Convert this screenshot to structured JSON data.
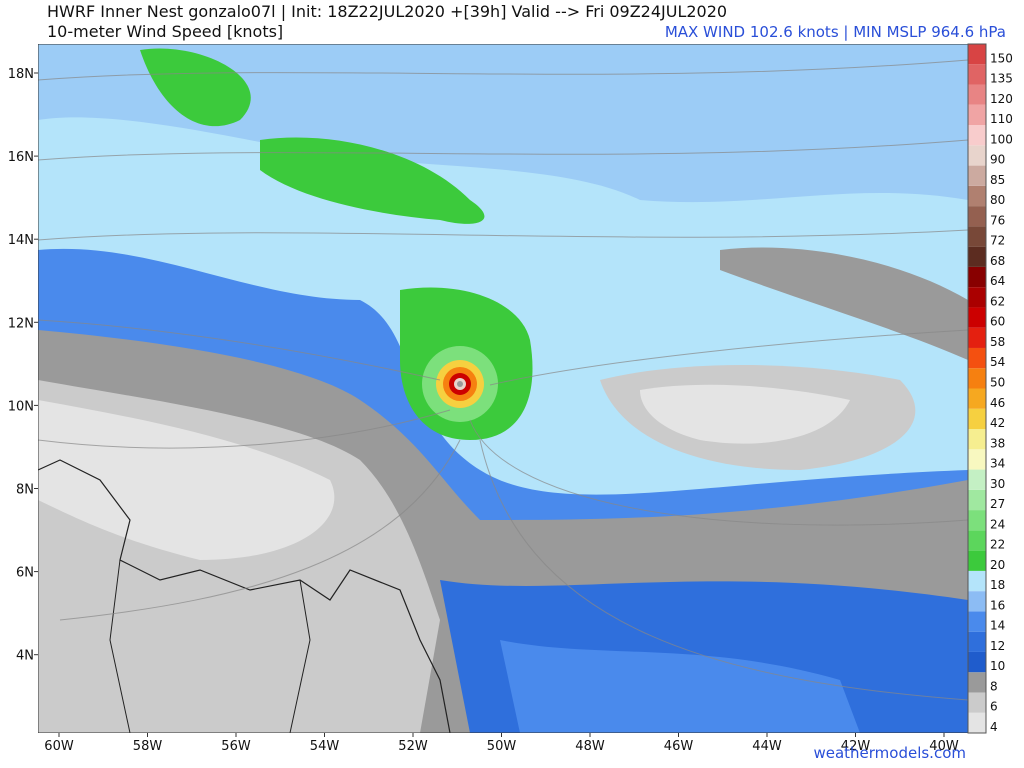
{
  "header": {
    "title": "HWRF Inner Nest  gonzalo07l | Init: 18Z22JUL2020 +[39h] Valid --> Fri 09Z24JUL2020",
    "subtitle": "10-meter Wind Speed [knots]",
    "stats": "MAX WIND 102.6 knots | MIN MSLP 964.6 hPa"
  },
  "map": {
    "lat_labels": [
      "18N",
      "16N",
      "14N",
      "12N",
      "10N",
      "8N",
      "6N",
      "4N"
    ],
    "lon_labels": [
      "60W",
      "58W",
      "56W",
      "54W",
      "52W",
      "50W",
      "48W",
      "46W",
      "44W",
      "42W",
      "40W"
    ]
  },
  "colorbar": {
    "levels": [
      4,
      6,
      8,
      10,
      12,
      14,
      16,
      18,
      20,
      22,
      24,
      27,
      30,
      34,
      38,
      42,
      46,
      50,
      54,
      58,
      60,
      62,
      64,
      68,
      72,
      76,
      80,
      85,
      90,
      100,
      110,
      120,
      135,
      150
    ],
    "colors": [
      "#e4e4e4",
      "#cbcbcb",
      "#9a9a9a",
      "#1f5ccc",
      "#2f6fdc",
      "#4a8aec",
      "#8cbcf4",
      "#b4e4fa",
      "#3cca3c",
      "#5cd65c",
      "#7ce07c",
      "#a0e8a0",
      "#c4f0c4",
      "#f8f8c0",
      "#f6ee90",
      "#f6d040",
      "#f6a820",
      "#f68010",
      "#f45010",
      "#e42010",
      "#cc0000",
      "#aa0000",
      "#880000",
      "#5c2c20",
      "#784838",
      "#946050",
      "#b08070",
      "#ccaaa0",
      "#e8d4cc",
      "#f8cccc",
      "#f0a4a4",
      "#e88484",
      "#e06464",
      "#d84444"
    ]
  },
  "footer": "weathermodels.com"
}
